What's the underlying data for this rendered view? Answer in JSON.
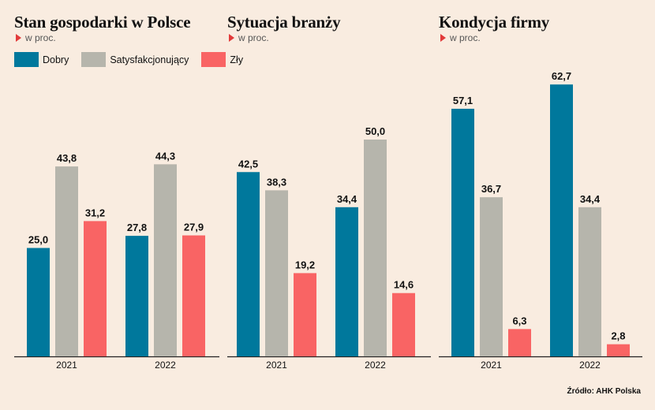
{
  "legend": [
    {
      "label": "Dobry",
      "color": "#00789c"
    },
    {
      "label": "Satysfakcjonujący",
      "color": "#b6b5ac"
    },
    {
      "label": "Zły",
      "color": "#f96464"
    }
  ],
  "source": "Źródło: AHK Polska",
  "chart_data": [
    {
      "type": "bar",
      "title": "Stan gospodarki w Polsce",
      "subtitle": "w proc.",
      "categories": [
        "2021",
        "2022"
      ],
      "series": [
        {
          "name": "Dobry",
          "values": [
            25.0,
            27.8
          ]
        },
        {
          "name": "Satysfakcjonujący",
          "values": [
            43.8,
            44.3
          ]
        },
        {
          "name": "Zły",
          "values": [
            31.2,
            27.9
          ]
        }
      ],
      "value_labels": [
        [
          "25,0",
          "27,8"
        ],
        [
          "43,8",
          "44,3"
        ],
        [
          "31,2",
          "27,9"
        ]
      ]
    },
    {
      "type": "bar",
      "title": "Sytuacja branży",
      "subtitle": "w proc.",
      "categories": [
        "2021",
        "2022"
      ],
      "series": [
        {
          "name": "Dobry",
          "values": [
            42.5,
            34.4
          ]
        },
        {
          "name": "Satysfakcjonujący",
          "values": [
            38.3,
            50.0
          ]
        },
        {
          "name": "Zły",
          "values": [
            19.2,
            14.6
          ]
        }
      ],
      "value_labels": [
        [
          "42,5",
          "34,4"
        ],
        [
          "38,3",
          "50,0"
        ],
        [
          "19,2",
          "14,6"
        ]
      ]
    },
    {
      "type": "bar",
      "title": "Kondycja firmy",
      "subtitle": "w proc.",
      "categories": [
        "2021",
        "2022"
      ],
      "series": [
        {
          "name": "Dobry",
          "values": [
            57.1,
            62.7
          ]
        },
        {
          "name": "Satysfakcjonujący",
          "values": [
            36.7,
            34.4
          ]
        },
        {
          "name": "Zły",
          "values": [
            6.3,
            2.8
          ]
        }
      ],
      "value_labels": [
        [
          "57,1",
          "62,7"
        ],
        [
          "36,7",
          "34,4"
        ],
        [
          "6,3",
          "2,8"
        ]
      ]
    }
  ]
}
